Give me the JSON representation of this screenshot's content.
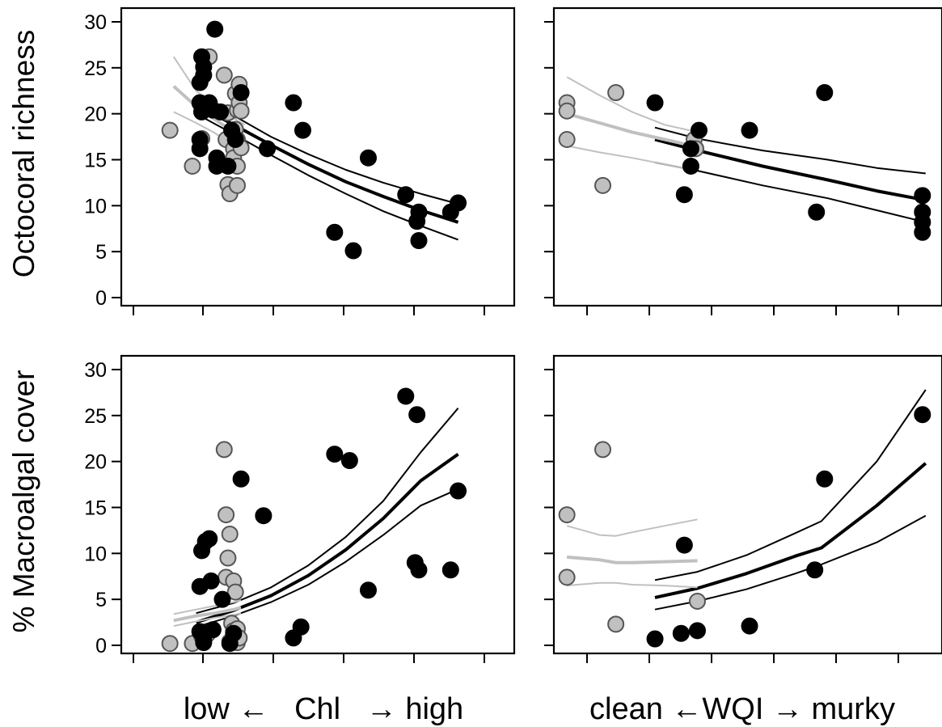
{
  "chart_data": [
    {
      "panel": "top-left",
      "type": "scatter",
      "ylabel": "Octocoral richness",
      "xlabel": "low ← Chl → high",
      "xlim": [
        -1,
        9.5
      ],
      "ylim": [
        -1,
        31
      ],
      "yticks": [
        0,
        5,
        10,
        15,
        20,
        25,
        30
      ],
      "xticks": [
        0,
        1,
        2,
        3,
        4,
        5
      ],
      "series": [
        {
          "color": "#c0c0c0",
          "points": [
            [
              0.3,
              18.2
            ],
            [
              0.9,
              14.3
            ],
            [
              1.15,
              17.3
            ],
            [
              1.35,
              26.2
            ],
            [
              1.75,
              24.2
            ],
            [
              1.8,
              17.2
            ],
            [
              1.85,
              20.1
            ],
            [
              1.85,
              12.3
            ],
            [
              1.9,
              11.3
            ],
            [
              2.0,
              16.2
            ],
            [
              2.0,
              15.2
            ],
            [
              2.05,
              22.2
            ],
            [
              2.05,
              18.3
            ],
            [
              2.1,
              20.4
            ],
            [
              2.1,
              17.2
            ],
            [
              2.1,
              14.3
            ],
            [
              2.1,
              12.2
            ],
            [
              2.15,
              23.2
            ],
            [
              2.15,
              21.2
            ],
            [
              2.2,
              20.3
            ],
            [
              2.2,
              16.3
            ]
          ]
        },
        {
          "color": "#000000",
          "points": [
            [
              1.15,
              26.2
            ],
            [
              1.2,
              24.2
            ],
            [
              1.2,
              25.1
            ],
            [
              1.1,
              23.4
            ],
            [
              1.1,
              21.2
            ],
            [
              1.15,
              20.2
            ],
            [
              1.1,
              17.2
            ],
            [
              1.1,
              16.2
            ],
            [
              1.35,
              21.2
            ],
            [
              1.45,
              20.4
            ],
            [
              1.5,
              29.2
            ],
            [
              1.55,
              15.2
            ],
            [
              1.55,
              14.3
            ],
            [
              1.65,
              20.2
            ],
            [
              1.85,
              14.3
            ],
            [
              1.95,
              18.2
            ],
            [
              2.05,
              17.2
            ],
            [
              2.2,
              22.3
            ],
            [
              2.9,
              16.2
            ],
            [
              3.6,
              21.2
            ],
            [
              3.85,
              18.2
            ],
            [
              4.7,
              7.1
            ],
            [
              5.2,
              5.1
            ],
            [
              5.6,
              15.2
            ],
            [
              6.6,
              11.2
            ],
            [
              6.9,
              8.3
            ],
            [
              6.95,
              9.3
            ],
            [
              6.95,
              6.2
            ],
            [
              7.8,
              9.3
            ],
            [
              8.0,
              10.3
            ]
          ]
        }
      ],
      "fits": [
        {
          "color": "#000000",
          "role": "fit",
          "x": [
            1.0,
            2.0,
            3.0,
            4.0,
            5.0,
            6.0,
            7.0,
            8.0
          ],
          "y": [
            21.0,
            18.8,
            16.6,
            14.5,
            12.6,
            11.0,
            9.5,
            8.2
          ]
        },
        {
          "color": "#000000",
          "role": "ci-upper",
          "x": [
            1.0,
            2.0,
            3.0,
            4.0,
            5.0,
            6.0,
            7.0,
            8.0
          ],
          "y": [
            22.0,
            19.8,
            17.5,
            15.6,
            13.9,
            12.5,
            11.3,
            10.2
          ]
        },
        {
          "color": "#000000",
          "role": "ci-lower",
          "x": [
            1.0,
            2.0,
            3.0,
            4.0,
            5.0,
            6.0,
            7.0,
            8.0
          ],
          "y": [
            20.0,
            17.8,
            15.5,
            13.3,
            11.3,
            9.4,
            7.8,
            6.3
          ]
        },
        {
          "color": "#c0c0c0",
          "role": "fit",
          "x": [
            0.4,
            1.0,
            1.5,
            2.0,
            2.3
          ],
          "y": [
            23.0,
            20.8,
            19.4,
            18.0,
            17.2
          ]
        },
        {
          "color": "#c0c0c0",
          "role": "ci-upper",
          "x": [
            0.4,
            1.0,
            1.5,
            2.0,
            2.3
          ],
          "y": [
            26.2,
            22.5,
            20.8,
            19.5,
            18.8
          ]
        },
        {
          "color": "#c0c0c0",
          "role": "ci-lower",
          "x": [
            0.4,
            1.0,
            1.5,
            2.0,
            2.3
          ],
          "y": [
            20.2,
            19.0,
            17.9,
            16.5,
            15.5
          ]
        }
      ]
    },
    {
      "panel": "top-right",
      "type": "scatter",
      "xlabel": "clean ←WQI → murky",
      "xlim": [
        -0.4,
        11.5
      ],
      "ylim": [
        -1,
        31
      ],
      "yticks": [
        0,
        5,
        10,
        15,
        20,
        25,
        30
      ],
      "xticks": [
        0,
        1,
        2,
        3,
        4,
        5
      ],
      "series": [
        {
          "color": "#c0c0c0",
          "points": [
            [
              0,
              21.2
            ],
            [
              0,
              20.3
            ],
            [
              0,
              17.2
            ],
            [
              1.1,
              12.2
            ],
            [
              1.5,
              22.3
            ],
            [
              3.9,
              17.2
            ],
            [
              3.95,
              16.2
            ]
          ]
        },
        {
          "color": "#000000",
          "points": [
            [
              2.7,
              21.2
            ],
            [
              3.6,
              11.2
            ],
            [
              3.8,
              14.3
            ],
            [
              3.8,
              16.2
            ],
            [
              4.05,
              18.2
            ],
            [
              5.6,
              18.2
            ],
            [
              7.65,
              9.3
            ],
            [
              7.9,
              22.3
            ],
            [
              10.9,
              11.1
            ],
            [
              10.9,
              9.3
            ],
            [
              10.9,
              8.2
            ],
            [
              10.9,
              7.1
            ]
          ]
        }
      ],
      "fits": [
        {
          "color": "#000000",
          "role": "fit",
          "x": [
            2.7,
            4.0,
            6.0,
            8.0,
            9.5,
            11.0
          ],
          "y": [
            17.2,
            16.0,
            14.3,
            12.8,
            11.6,
            10.6
          ]
        },
        {
          "color": "#000000",
          "role": "ci-upper",
          "x": [
            2.7,
            4.0,
            6.0,
            8.0,
            9.5,
            11.0
          ],
          "y": [
            18.5,
            17.3,
            16.0,
            15.0,
            14.1,
            13.5
          ]
        },
        {
          "color": "#000000",
          "role": "ci-lower",
          "x": [
            2.7,
            4.0,
            6.0,
            8.0,
            9.5,
            11.0
          ],
          "y": [
            14.7,
            13.8,
            12.2,
            10.8,
            9.5,
            8.2
          ]
        },
        {
          "color": "#c0c0c0",
          "role": "fit",
          "x": [
            0,
            1,
            2,
            3,
            4
          ],
          "y": [
            20.0,
            19.0,
            18.0,
            17.2,
            16.4
          ]
        },
        {
          "color": "#c0c0c0",
          "role": "ci-upper",
          "x": [
            0,
            1,
            2,
            3,
            4
          ],
          "y": [
            24.0,
            22.0,
            20.2,
            18.8,
            18.0
          ]
        },
        {
          "color": "#c0c0c0",
          "role": "ci-lower",
          "x": [
            0,
            1,
            2,
            3,
            4
          ],
          "y": [
            16.5,
            15.8,
            15.2,
            14.5,
            13.8
          ]
        }
      ]
    },
    {
      "panel": "bottom-left",
      "type": "scatter",
      "ylabel": "% Macroalgal cover",
      "xlabel": "low ← Chl → high",
      "xlim": [
        -1,
        9.5
      ],
      "ylim": [
        -1,
        31
      ],
      "yticks": [
        0,
        5,
        10,
        15,
        20,
        25,
        30
      ],
      "xticks": [
        0,
        1,
        2,
        3,
        4,
        5
      ],
      "series": [
        {
          "color": "#c0c0c0",
          "points": [
            [
              0.3,
              0.2
            ],
            [
              0.9,
              0.2
            ],
            [
              1.15,
              1.0
            ],
            [
              1.3,
              1.2
            ],
            [
              1.75,
              21.3
            ],
            [
              1.8,
              14.2
            ],
            [
              1.9,
              12.1
            ],
            [
              1.85,
              9.5
            ],
            [
              1.8,
              7.4
            ],
            [
              2.0,
              7.0
            ],
            [
              2.05,
              5.8
            ],
            [
              1.95,
              2.4
            ],
            [
              2.0,
              1.6
            ],
            [
              2.0,
              0.5
            ],
            [
              2.05,
              1.1
            ],
            [
              2.1,
              0.3
            ],
            [
              1.9,
              0.4
            ],
            [
              2.1,
              1.8
            ],
            [
              2.15,
              0.8
            ]
          ]
        },
        {
          "color": "#000000",
          "points": [
            [
              1.1,
              6.4
            ],
            [
              1.15,
              10.3
            ],
            [
              1.25,
              11.3
            ],
            [
              1.35,
              11.6
            ],
            [
              1.4,
              7.0
            ],
            [
              1.1,
              1.5
            ],
            [
              1.2,
              0.3
            ],
            [
              1.2,
              0.5
            ],
            [
              1.45,
              1.7
            ],
            [
              1.7,
              5.0
            ],
            [
              1.9,
              0.2
            ],
            [
              2.0,
              1.3
            ],
            [
              2.2,
              18.1
            ],
            [
              2.8,
              14.1
            ],
            [
              3.6,
              0.8
            ],
            [
              3.8,
              2.0
            ],
            [
              4.7,
              20.8
            ],
            [
              5.1,
              20.1
            ],
            [
              5.6,
              6.0
            ],
            [
              6.6,
              27.1
            ],
            [
              6.9,
              25.1
            ],
            [
              6.85,
              9.0
            ],
            [
              6.95,
              8.2
            ],
            [
              7.8,
              8.2
            ],
            [
              8.0,
              16.8
            ]
          ]
        }
      ],
      "fits": [
        {
          "color": "#000000",
          "role": "fit",
          "x": [
            1.0,
            2.0,
            3.0,
            4.0,
            5.0,
            6.0,
            7.0,
            8.0
          ],
          "y": [
            2.5,
            3.8,
            5.4,
            7.6,
            10.4,
            13.8,
            17.9,
            20.8
          ]
        },
        {
          "color": "#000000",
          "role": "ci-upper",
          "x": [
            1.0,
            2.0,
            3.0,
            4.0,
            5.0,
            6.0,
            7.0,
            8.0
          ],
          "y": [
            3.5,
            4.6,
            6.3,
            8.7,
            11.8,
            15.7,
            21.0,
            25.8
          ]
        },
        {
          "color": "#000000",
          "role": "ci-lower",
          "x": [
            1.0,
            2.0,
            3.0,
            4.0,
            5.0,
            6.0,
            7.0,
            8.0
          ],
          "y": [
            2.0,
            3.2,
            4.7,
            6.6,
            9.1,
            12.0,
            15.2,
            17.0
          ]
        },
        {
          "color": "#c0c0c0",
          "role": "fit",
          "x": [
            0.4,
            1.0,
            1.5,
            2.0,
            2.2
          ],
          "y": [
            2.7,
            3.2,
            3.5,
            3.9,
            4.1
          ]
        },
        {
          "color": "#c0c0c0",
          "role": "ci-upper",
          "x": [
            0.4,
            1.0,
            1.5,
            2.0,
            2.2
          ],
          "y": [
            3.4,
            3.9,
            4.3,
            4.7,
            4.9
          ]
        },
        {
          "color": "#c0c0c0",
          "role": "ci-lower",
          "x": [
            0.4,
            1.0,
            1.5,
            2.0,
            2.2
          ],
          "y": [
            2.1,
            2.6,
            3.0,
            3.3,
            3.5
          ]
        }
      ]
    },
    {
      "panel": "bottom-right",
      "type": "scatter",
      "xlabel": "clean ←WQI → murky",
      "xlim": [
        -0.4,
        11.5
      ],
      "ylim": [
        -1,
        31
      ],
      "yticks": [
        0,
        5,
        10,
        15,
        20,
        25,
        30
      ],
      "xticks": [
        0,
        1,
        2,
        3,
        4,
        5
      ],
      "series": [
        {
          "color": "#c0c0c0",
          "points": [
            [
              0,
              14.2
            ],
            [
              0,
              7.4
            ],
            [
              1.1,
              21.3
            ],
            [
              1.5,
              2.3
            ],
            [
              4.0,
              4.8
            ]
          ]
        },
        {
          "color": "#000000",
          "points": [
            [
              2.7,
              0.7
            ],
            [
              3.5,
              1.3
            ],
            [
              3.6,
              10.9
            ],
            [
              4.0,
              1.6
            ],
            [
              5.6,
              2.1
            ],
            [
              7.6,
              8.2
            ],
            [
              7.9,
              18.1
            ],
            [
              10.9,
              25.1
            ]
          ]
        }
      ],
      "fits": [
        {
          "color": "#000000",
          "role": "fit",
          "x": [
            2.7,
            4.0,
            5.5,
            7.0,
            7.8,
            9.5,
            11.0
          ],
          "y": [
            5.2,
            6.2,
            7.8,
            9.7,
            10.6,
            15.2,
            19.8
          ]
        },
        {
          "color": "#000000",
          "role": "ci-upper",
          "x": [
            2.7,
            4.0,
            5.5,
            7.0,
            7.8,
            9.5,
            11.0
          ],
          "y": [
            7.1,
            8.0,
            9.8,
            12.2,
            13.5,
            20.0,
            27.8
          ]
        },
        {
          "color": "#000000",
          "role": "ci-lower",
          "x": [
            2.7,
            4.0,
            5.5,
            7.0,
            7.8,
            9.5,
            11.0
          ],
          "y": [
            3.9,
            4.8,
            6.1,
            7.8,
            8.8,
            11.2,
            14.1
          ]
        },
        {
          "color": "#c0c0c0",
          "role": "fit",
          "x": [
            0,
            1,
            1.5,
            2,
            3,
            4
          ],
          "y": [
            9.6,
            9.3,
            9.0,
            9.0,
            9.1,
            9.2
          ]
        },
        {
          "color": "#c0c0c0",
          "role": "ci-upper",
          "x": [
            0,
            1,
            1.5,
            2,
            3,
            4
          ],
          "y": [
            13.0,
            12.0,
            11.9,
            12.3,
            13.0,
            13.7
          ]
        },
        {
          "color": "#c0c0c0",
          "role": "ci-lower",
          "x": [
            0,
            1,
            1.5,
            2,
            3,
            4
          ],
          "y": [
            6.5,
            6.8,
            6.8,
            6.6,
            6.5,
            6.3
          ]
        }
      ]
    }
  ],
  "labels": {
    "y_top": "Octocoral richness",
    "y_bottom": "% Macroalgal cover",
    "x_left": "low ←   Chl   → high",
    "x_right": "clean ←WQI → murky"
  }
}
